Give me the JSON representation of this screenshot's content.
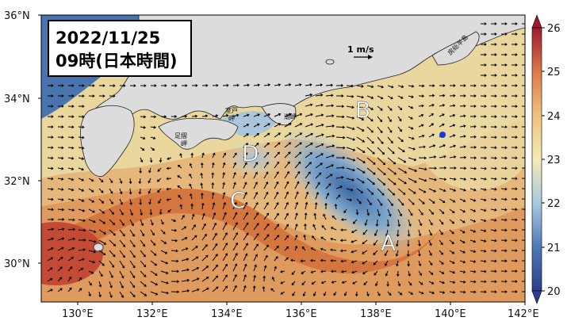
{
  "title": {
    "date": "2022/11/25",
    "time": "09時(日本時間)"
  },
  "reference_arrow": {
    "label": "1 m/s"
  },
  "axes": {
    "x_ticks": [
      "130°E",
      "132°E",
      "134°E",
      "136°E",
      "138°E",
      "140°E",
      "142°E"
    ],
    "y_ticks": [
      "36°N",
      "34°N",
      "32°N",
      "30°N"
    ]
  },
  "colorbar": {
    "ticks": [
      "26",
      "25",
      "24",
      "23",
      "22",
      "21",
      "20"
    ],
    "min": 20,
    "max": 26
  },
  "place_labels": {
    "muroto": "室戸\n岬",
    "ashizuri": "足摺\n岬",
    "shiono": "潮岬",
    "boso": "房総半島"
  },
  "regions": [
    "A",
    "B",
    "C",
    "D"
  ],
  "colors": {
    "land": "#dcdcdc",
    "deep_cold": "#2b4f93",
    "cold": "#6b95c1",
    "neutral": "#e7d89a",
    "warm": "#e4a064",
    "hot": "#c6452f",
    "marker": "#1b3ad6"
  }
}
